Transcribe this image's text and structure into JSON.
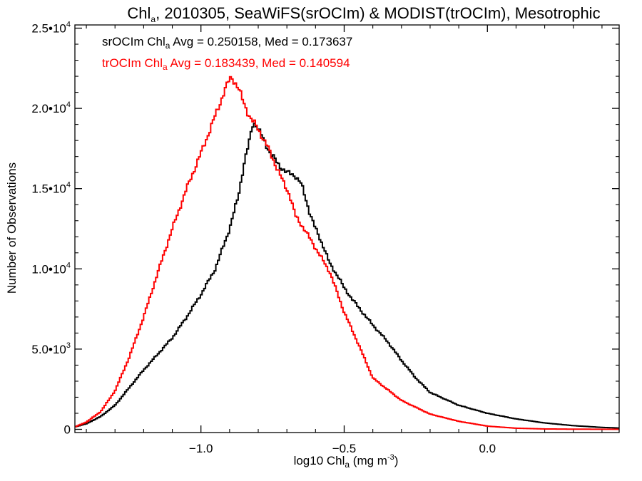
{
  "chart_data": {
    "type": "line",
    "title": {
      "prefix": "Chl",
      "sub": "a",
      "suffix": ", 2010305, SeaWiFS(srOCIm) & MODIST(trOCIm), Mesotrophic"
    },
    "xlabel": {
      "prefix": "log10 Chl",
      "sub": "a",
      "mid": " (mg m",
      "sup": "-3",
      "suffix": ")"
    },
    "ylabel": "Number of Observations",
    "xlim": [
      -1.44,
      0.46
    ],
    "ylim": [
      -200,
      25200
    ],
    "x_ticks": [
      {
        "value": -1.0,
        "label": "−1.0"
      },
      {
        "value": -0.5,
        "label": "−0.5"
      },
      {
        "value": 0.0,
        "label": "0.0"
      }
    ],
    "y_ticks": [
      {
        "value": 0,
        "mant": "0",
        "exp": ""
      },
      {
        "value": 5000,
        "mant": "5.0•10",
        "exp": "3"
      },
      {
        "value": 10000,
        "mant": "1.0•10",
        "exp": "4"
      },
      {
        "value": 15000,
        "mant": "1.5•10",
        "exp": "4"
      },
      {
        "value": 20000,
        "mant": "2.0•10",
        "exp": "4"
      },
      {
        "value": 25000,
        "mant": "2.5•10",
        "exp": "4"
      }
    ],
    "series": [
      {
        "name": "srOCIm",
        "color": "#000000",
        "legend": {
          "prefix": "srOCIm Chl",
          "sub": "a",
          "suffix": " Avg = 0.250158, Med = 0.173637"
        },
        "points": [
          [
            -1.44,
            150
          ],
          [
            -1.4,
            350
          ],
          [
            -1.35,
            800
          ],
          [
            -1.3,
            1500
          ],
          [
            -1.25,
            2600
          ],
          [
            -1.2,
            3700
          ],
          [
            -1.15,
            4700
          ],
          [
            -1.1,
            5700
          ],
          [
            -1.05,
            7000
          ],
          [
            -1.0,
            8400
          ],
          [
            -0.95,
            10000
          ],
          [
            -0.9,
            12500
          ],
          [
            -0.87,
            14500
          ],
          [
            -0.85,
            16500
          ],
          [
            -0.83,
            18000
          ],
          [
            -0.82,
            19000
          ],
          [
            -0.81,
            19100
          ],
          [
            -0.8,
            18700
          ],
          [
            -0.78,
            18000
          ],
          [
            -0.76,
            17300
          ],
          [
            -0.73,
            16500
          ],
          [
            -0.7,
            16000
          ],
          [
            -0.67,
            15800
          ],
          [
            -0.65,
            15300
          ],
          [
            -0.62,
            13500
          ],
          [
            -0.6,
            12500
          ],
          [
            -0.57,
            11300
          ],
          [
            -0.55,
            10300
          ],
          [
            -0.52,
            9500
          ],
          [
            -0.5,
            8800
          ],
          [
            -0.45,
            7600
          ],
          [
            -0.4,
            6500
          ],
          [
            -0.35,
            5500
          ],
          [
            -0.3,
            4300
          ],
          [
            -0.25,
            3200
          ],
          [
            -0.2,
            2300
          ],
          [
            -0.1,
            1500
          ],
          [
            0.0,
            1000
          ],
          [
            0.1,
            650
          ],
          [
            0.2,
            400
          ],
          [
            0.3,
            230
          ],
          [
            0.4,
            120
          ],
          [
            0.46,
            80
          ]
        ]
      },
      {
        "name": "trOCIm",
        "color": "#ff0000",
        "legend": {
          "prefix": "trOCIm Chl",
          "sub": "a",
          "suffix": " Avg = 0.183439, Med = 0.140594"
        },
        "points": [
          [
            -1.44,
            150
          ],
          [
            -1.4,
            450
          ],
          [
            -1.35,
            1100
          ],
          [
            -1.3,
            2400
          ],
          [
            -1.25,
            4500
          ],
          [
            -1.2,
            7000
          ],
          [
            -1.15,
            9800
          ],
          [
            -1.1,
            12500
          ],
          [
            -1.05,
            15000
          ],
          [
            -1.0,
            17200
          ],
          [
            -0.97,
            18600
          ],
          [
            -0.94,
            20000
          ],
          [
            -0.92,
            21000
          ],
          [
            -0.9,
            21800
          ],
          [
            -0.89,
            21900
          ],
          [
            -0.87,
            21300
          ],
          [
            -0.85,
            20300
          ],
          [
            -0.83,
            19500
          ],
          [
            -0.8,
            18700
          ],
          [
            -0.77,
            17700
          ],
          [
            -0.74,
            16500
          ],
          [
            -0.71,
            15300
          ],
          [
            -0.69,
            14600
          ],
          [
            -0.67,
            13300
          ],
          [
            -0.64,
            12500
          ],
          [
            -0.6,
            11300
          ],
          [
            -0.55,
            9800
          ],
          [
            -0.5,
            7300
          ],
          [
            -0.45,
            5300
          ],
          [
            -0.4,
            3200
          ],
          [
            -0.35,
            2500
          ],
          [
            -0.3,
            1800
          ],
          [
            -0.2,
            950
          ],
          [
            -0.1,
            500
          ],
          [
            0.0,
            200
          ],
          [
            0.1,
            70
          ],
          [
            0.2,
            25
          ],
          [
            0.3,
            10
          ],
          [
            0.46,
            5
          ]
        ]
      }
    ],
    "grid": false,
    "legend_position": "top-left"
  }
}
